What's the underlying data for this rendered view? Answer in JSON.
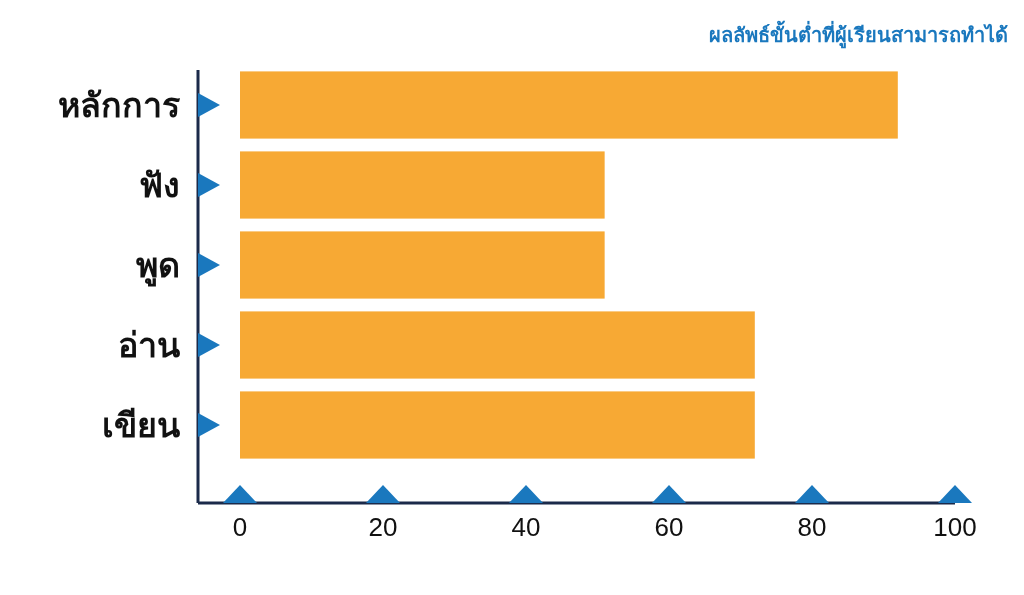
{
  "chart_data": {
    "type": "bar",
    "orientation": "horizontal",
    "title": "ผลลัพธ์ขั้นต่ำที่ผู้เรียนสามารถทำได้",
    "categories": [
      "หลักการ",
      "ฟัง",
      "พูด",
      "อ่าน",
      "เขียน"
    ],
    "values": [
      92,
      51,
      51,
      72,
      72
    ],
    "color": "#f7a934",
    "xlim": [
      0,
      100
    ],
    "xticks": [
      0,
      20,
      40,
      60,
      80,
      100
    ],
    "grid": false
  }
}
